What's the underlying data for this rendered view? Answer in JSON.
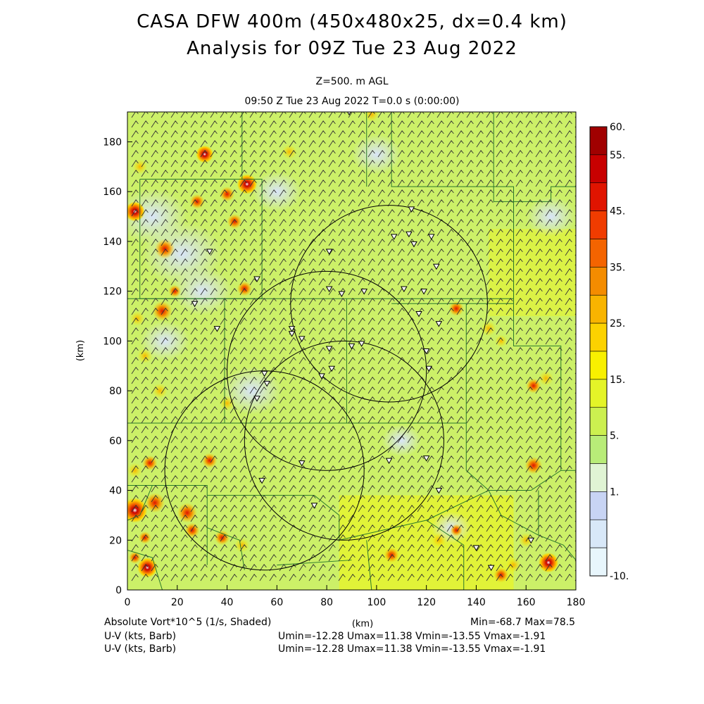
{
  "header": {
    "title_line1": "CASA DFW 400m (450x480x25, dx=0.4 km)",
    "title_line2": "Analysis for 09Z Tue 23 Aug 2022",
    "level": "Z=500. m AGL",
    "time": "09:50 Z Tue 23 Aug 2022   T=0.0 s (0:00:00)"
  },
  "map": {
    "x_ticks": [
      "0",
      "20",
      "40",
      "60",
      "80",
      "100",
      "120",
      "140",
      "160",
      "180"
    ],
    "y_ticks": [
      "0",
      "20",
      "40",
      "60",
      "80",
      "100",
      "120",
      "140",
      "160",
      "180"
    ],
    "x_unit": "(km)",
    "y_unit": "(km)",
    "xlim": [
      0,
      180
    ],
    "ylim": [
      0,
      192
    ],
    "radar_circles": [
      {
        "center": [
          105,
          115
        ],
        "radius": 39.5
      },
      {
        "center": [
          80,
          88
        ],
        "radius": 40
      },
      {
        "center": [
          55,
          48
        ],
        "radius": 40
      },
      {
        "center": [
          87,
          60
        ],
        "radius": 40
      }
    ],
    "wind_barbs": {
      "u": -6,
      "v": -9
    }
  },
  "colorbar": {
    "labels": [
      "60.",
      "55.",
      "45.",
      "35.",
      "25.",
      "15.",
      "5.",
      "1.",
      "-10."
    ],
    "colors": [
      "#a00000",
      "#c80000",
      "#e01400",
      "#f03c00",
      "#f46400",
      "#f48c00",
      "#f8b400",
      "#fcd200",
      "#f8f000",
      "#e4f428",
      "#ccf050",
      "#b8ec78",
      "#e0f4d4",
      "#c8d4f4",
      "#d8e8f8",
      "#e8f6fc"
    ]
  },
  "footer": {
    "field": "Absolute Vort*10^5 (1/s, Shaded)",
    "unit": "(km)",
    "minmax": "Min=-68.7 Max=78.5",
    "wind1": "U-V (kts, Barb)",
    "stats1": "Umin=-12.28 Umax=11.38 Vmin=-13.55 Vmax=-1.91",
    "wind2": "U-V (kts, Barb)",
    "stats2": "Umin=-12.28 Umax=11.38 Vmin=-13.55 Vmax=-1.91"
  }
}
